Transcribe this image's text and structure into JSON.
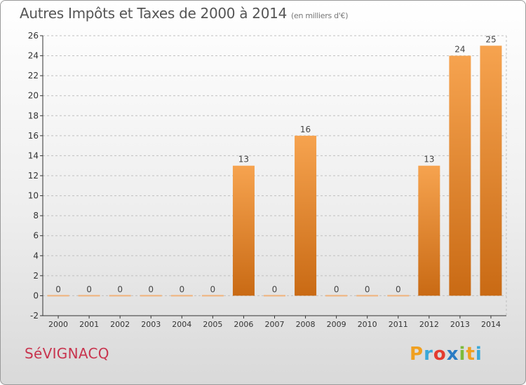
{
  "title": "Autres Impôts et Taxes de 2000 à 2014",
  "subtitle": "(en milliers d'€)",
  "town": "SéVIGNACQ",
  "logo": {
    "p": "P",
    "r": "r",
    "o": "o",
    "x": "x",
    "i1": "i",
    "t": "t",
    "i2": "i"
  },
  "colors": {
    "bar_light": "#f6a34f",
    "bar_dark": "#c96a14",
    "zero_line": "#f0b27a",
    "axis": "#333333",
    "grid": "#bfbfbf",
    "town": "#c8344e"
  },
  "chart_data": {
    "type": "bar",
    "categories": [
      "2000",
      "2001",
      "2002",
      "2003",
      "2004",
      "2005",
      "2006",
      "2007",
      "2008",
      "2009",
      "2010",
      "2011",
      "2012",
      "2013",
      "2014"
    ],
    "values": [
      0,
      0,
      0,
      0,
      0,
      0,
      13,
      0,
      16,
      0,
      0,
      0,
      13,
      24,
      25
    ],
    "title": "Autres Impôts et Taxes de 2000 à 2014",
    "subtitle": "(en milliers d'€)",
    "xlabel": "",
    "ylabel": "",
    "ylim": [
      -2,
      26
    ],
    "yticks": [
      -2,
      0,
      2,
      4,
      6,
      8,
      10,
      12,
      14,
      16,
      18,
      20,
      22,
      24,
      26
    ],
    "grid": true
  }
}
